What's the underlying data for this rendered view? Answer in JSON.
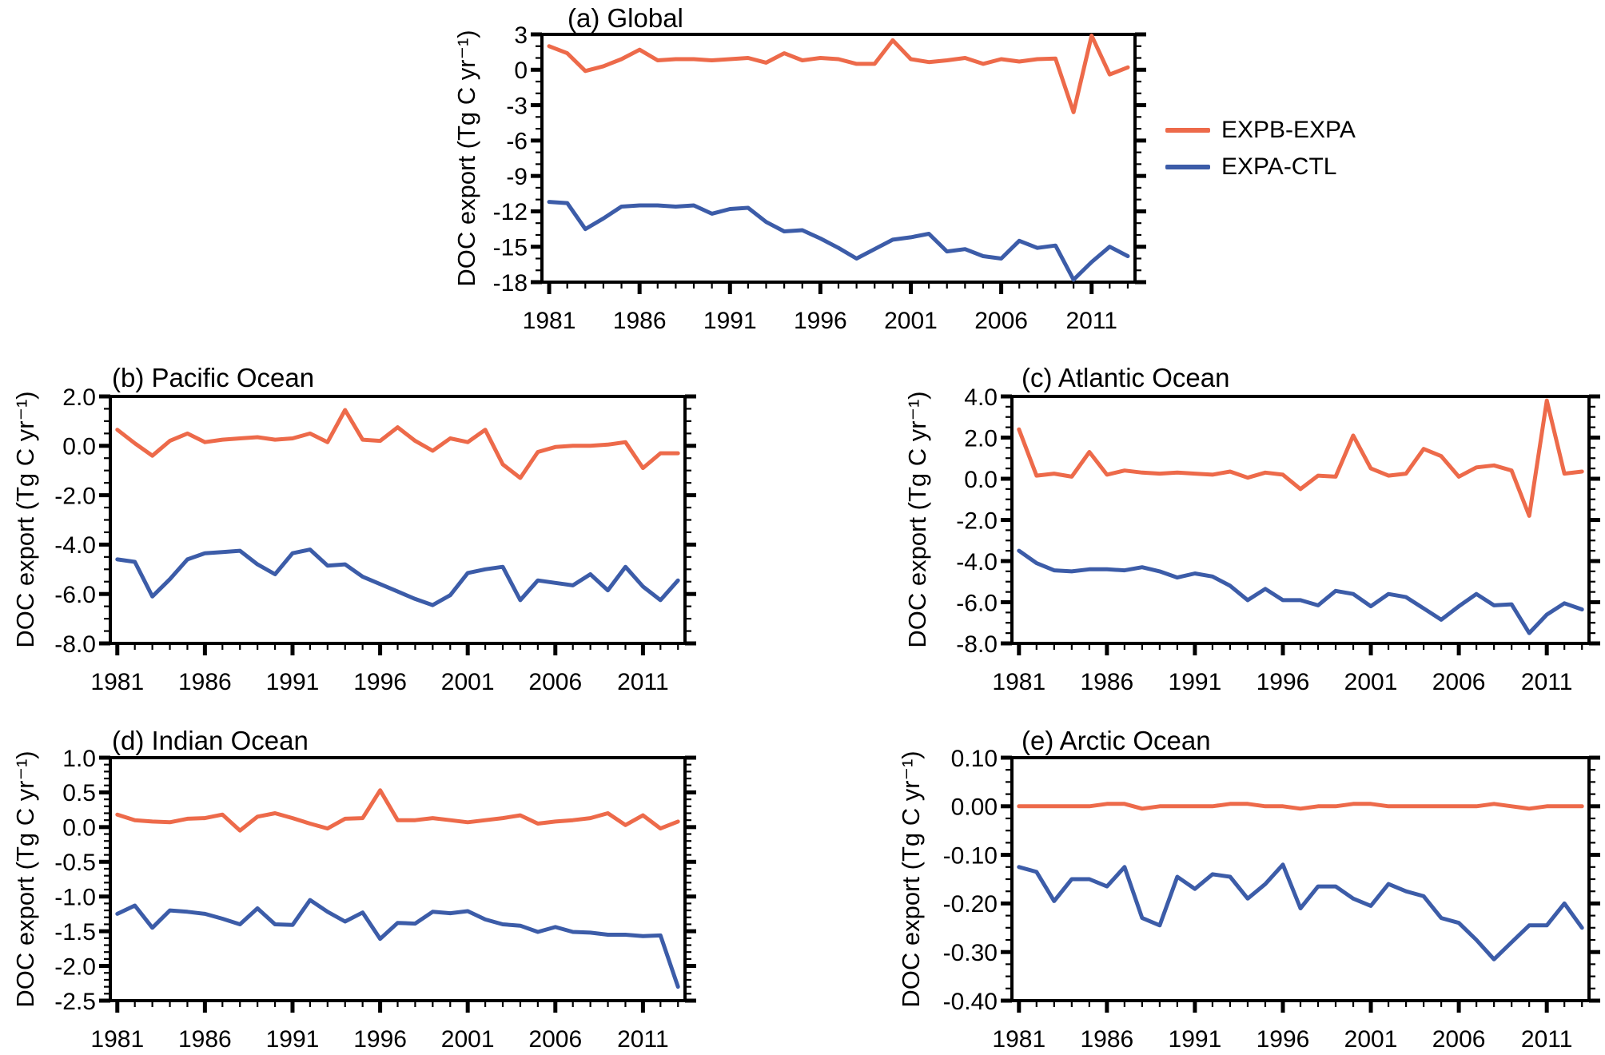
{
  "colors": {
    "expb_expa": "#ED6A4A",
    "expa_ctl": "#3C5CA8",
    "axis": "#000000",
    "background": "#ffffff"
  },
  "legend": {
    "items": [
      {
        "label": "EXPB-EXPA",
        "color_key": "expb_expa"
      },
      {
        "label": "EXPA-CTL",
        "color_key": "expa_ctl"
      }
    ]
  },
  "years": [
    1981,
    1982,
    1983,
    1984,
    1985,
    1986,
    1987,
    1988,
    1989,
    1990,
    1991,
    1992,
    1993,
    1994,
    1995,
    1996,
    1997,
    1998,
    1999,
    2000,
    2001,
    2002,
    2003,
    2004,
    2005,
    2006,
    2007,
    2008,
    2009,
    2010,
    2011,
    2012,
    2013
  ],
  "x_axis": {
    "range": [
      1980.6,
      2013.4
    ],
    "tick_years": [
      1981,
      1986,
      1991,
      1996,
      2001,
      2006,
      2011
    ],
    "tick_labels": [
      "1981",
      "1986",
      "1991",
      "1996",
      "2001",
      "2006",
      "2011"
    ],
    "minor_step_years": 1
  },
  "chart_data": [
    {
      "id": "a",
      "type": "line",
      "title": "(a) Global",
      "ylabel": "DOC export (Tg C yr⁻¹)",
      "y_range": [
        -18,
        3
      ],
      "y_ticks": {
        "values": [
          3,
          0,
          -3,
          -6,
          -9,
          -12,
          -15,
          -18
        ],
        "labels": [
          "3",
          "0",
          "-3",
          "-6",
          "-9",
          "-12",
          "-15",
          "-18"
        ]
      },
      "y_minor_step": 1,
      "series": [
        {
          "name": "EXPB-EXPA",
          "color": "#ED6A4A",
          "values": [
            2.0,
            1.4,
            -0.1,
            0.3,
            0.9,
            1.7,
            0.8,
            0.9,
            0.9,
            0.8,
            0.9,
            1.0,
            0.6,
            1.4,
            0.8,
            1.0,
            0.9,
            0.5,
            0.5,
            2.5,
            0.9,
            0.65,
            0.8,
            1.0,
            0.5,
            0.9,
            0.7,
            0.9,
            0.95,
            -3.6,
            2.9,
            -0.4,
            0.2
          ]
        },
        {
          "name": "EXPA-CTL",
          "color": "#3C5CA8",
          "values": [
            -11.2,
            -11.3,
            -13.5,
            -12.6,
            -11.6,
            -11.5,
            -11.5,
            -11.6,
            -11.5,
            -12.2,
            -11.8,
            -11.7,
            -12.9,
            -13.7,
            -13.6,
            -14.3,
            -15.1,
            -16.0,
            -15.2,
            -14.4,
            -14.2,
            -13.9,
            -15.4,
            -15.2,
            -15.8,
            -16.0,
            -14.5,
            -15.1,
            -14.9,
            -17.8,
            -16.3,
            -15.0,
            -15.8
          ]
        }
      ]
    },
    {
      "id": "b",
      "type": "line",
      "title": "(b) Pacific Ocean",
      "ylabel": "DOC export (Tg C yr⁻¹)",
      "y_range": [
        -8,
        2
      ],
      "y_ticks": {
        "values": [
          2,
          0,
          -2,
          -4,
          -6,
          -8
        ],
        "labels": [
          "2.0",
          "0.0",
          "-2.0",
          "-4.0",
          "-6.0",
          "-8.0"
        ]
      },
      "y_minor_step": 0.5,
      "series": [
        {
          "name": "EXPB-EXPA",
          "color": "#ED6A4A",
          "values": [
            0.65,
            0.1,
            -0.4,
            0.2,
            0.5,
            0.15,
            0.25,
            0.3,
            0.35,
            0.25,
            0.3,
            0.5,
            0.15,
            1.45,
            0.25,
            0.2,
            0.75,
            0.2,
            -0.2,
            0.3,
            0.15,
            0.65,
            -0.75,
            -1.3,
            -0.25,
            -0.05,
            0.0,
            0.0,
            0.05,
            0.15,
            -0.9,
            -0.3,
            -0.3
          ]
        },
        {
          "name": "EXPA-CTL",
          "color": "#3C5CA8",
          "values": [
            -4.6,
            -4.7,
            -6.1,
            -5.4,
            -4.6,
            -4.35,
            -4.3,
            -4.25,
            -4.8,
            -5.2,
            -4.35,
            -4.2,
            -4.85,
            -4.8,
            -5.3,
            -5.6,
            -5.9,
            -6.2,
            -6.45,
            -6.05,
            -5.15,
            -5.0,
            -4.9,
            -6.25,
            -5.45,
            -5.55,
            -5.65,
            -5.2,
            -5.85,
            -4.9,
            -5.7,
            -6.25,
            -5.45
          ]
        }
      ]
    },
    {
      "id": "c",
      "type": "line",
      "title": "(c) Atlantic Ocean",
      "ylabel": "DOC export (Tg C yr⁻¹)",
      "y_range": [
        -8,
        4
      ],
      "y_ticks": {
        "values": [
          4,
          2,
          0,
          -2,
          -4,
          -6,
          -8
        ],
        "labels": [
          "4.0",
          "2.0",
          "0.0",
          "-2.0",
          "-4.0",
          "-6.0",
          "-8.0"
        ]
      },
      "y_minor_step": 0.5,
      "series": [
        {
          "name": "EXPB-EXPA",
          "color": "#ED6A4A",
          "values": [
            2.4,
            0.15,
            0.25,
            0.1,
            1.3,
            0.2,
            0.4,
            0.3,
            0.25,
            0.3,
            0.25,
            0.2,
            0.35,
            0.05,
            0.3,
            0.2,
            -0.5,
            0.15,
            0.1,
            2.1,
            0.5,
            0.15,
            0.25,
            1.45,
            1.1,
            0.1,
            0.55,
            0.65,
            0.4,
            -1.8,
            3.8,
            0.25,
            0.35
          ]
        },
        {
          "name": "EXPA-CTL",
          "color": "#3C5CA8",
          "values": [
            -3.5,
            -4.1,
            -4.45,
            -4.5,
            -4.4,
            -4.4,
            -4.45,
            -4.3,
            -4.5,
            -4.8,
            -4.6,
            -4.75,
            -5.2,
            -5.9,
            -5.35,
            -5.9,
            -5.9,
            -6.15,
            -5.45,
            -5.6,
            -6.2,
            -5.6,
            -5.75,
            -6.3,
            -6.85,
            -6.2,
            -5.6,
            -6.15,
            -6.1,
            -7.5,
            -6.6,
            -6.05,
            -6.35
          ]
        }
      ]
    },
    {
      "id": "d",
      "type": "line",
      "title": "(d) Indian Ocean",
      "ylabel": "DOC export (Tg C yr⁻¹)",
      "y_range": [
        -2.5,
        1
      ],
      "y_ticks": {
        "values": [
          1,
          0.5,
          0,
          -0.5,
          -1,
          -1.5,
          -2,
          -2.5
        ],
        "labels": [
          "1.0",
          "0.5",
          "0.0",
          "-0.5",
          "-1.0",
          "-1.5",
          "-2.0",
          "-2.5"
        ]
      },
      "y_minor_step": 0.1,
      "series": [
        {
          "name": "EXPB-EXPA",
          "color": "#ED6A4A",
          "values": [
            0.18,
            0.1,
            0.08,
            0.07,
            0.12,
            0.13,
            0.18,
            -0.05,
            0.15,
            0.2,
            0.13,
            0.05,
            -0.02,
            0.12,
            0.13,
            0.53,
            0.1,
            0.1,
            0.13,
            0.1,
            0.07,
            0.1,
            0.13,
            0.17,
            0.05,
            0.08,
            0.1,
            0.13,
            0.2,
            0.03,
            0.17,
            -0.02,
            0.08
          ]
        },
        {
          "name": "EXPA-CTL",
          "color": "#3C5CA8",
          "values": [
            -1.25,
            -1.13,
            -1.45,
            -1.2,
            -1.22,
            -1.25,
            -1.32,
            -1.4,
            -1.17,
            -1.4,
            -1.41,
            -1.05,
            -1.22,
            -1.36,
            -1.23,
            -1.61,
            -1.38,
            -1.39,
            -1.22,
            -1.24,
            -1.21,
            -1.33,
            -1.4,
            -1.42,
            -1.51,
            -1.44,
            -1.51,
            -1.52,
            -1.55,
            -1.55,
            -1.57,
            -1.56,
            -2.3
          ]
        }
      ]
    },
    {
      "id": "e",
      "type": "line",
      "title": "(e) Arctic Ocean",
      "ylabel": "DOC export (Tg C yr⁻¹)",
      "y_range": [
        -0.4,
        0.1
      ],
      "y_ticks": {
        "values": [
          0.1,
          0,
          -0.1,
          -0.2,
          -0.3,
          -0.4
        ],
        "labels": [
          "0.10",
          "0.00",
          "-0.10",
          "-0.20",
          "-0.30",
          "-0.40"
        ]
      },
      "y_minor_step": 0.025,
      "series": [
        {
          "name": "EXPB-EXPA",
          "color": "#ED6A4A",
          "values": [
            0.0,
            0.0,
            0.0,
            0.0,
            0.0,
            0.005,
            0.005,
            -0.005,
            0.0,
            0.0,
            0.0,
            0.0,
            0.005,
            0.005,
            0.0,
            0.0,
            -0.005,
            0.0,
            0.0,
            0.005,
            0.005,
            0.0,
            0.0,
            0.0,
            0.0,
            0.0,
            0.0,
            0.005,
            0.0,
            -0.005,
            0.0,
            0.0,
            0.0
          ]
        },
        {
          "name": "EXPA-CTL",
          "color": "#3C5CA8",
          "values": [
            -0.125,
            -0.135,
            -0.195,
            -0.15,
            -0.15,
            -0.165,
            -0.125,
            -0.23,
            -0.245,
            -0.145,
            -0.17,
            -0.14,
            -0.145,
            -0.19,
            -0.16,
            -0.12,
            -0.21,
            -0.165,
            -0.165,
            -0.19,
            -0.205,
            -0.16,
            -0.175,
            -0.185,
            -0.23,
            -0.24,
            -0.275,
            -0.315,
            -0.28,
            -0.245,
            -0.245,
            -0.2,
            -0.25
          ]
        }
      ]
    }
  ]
}
